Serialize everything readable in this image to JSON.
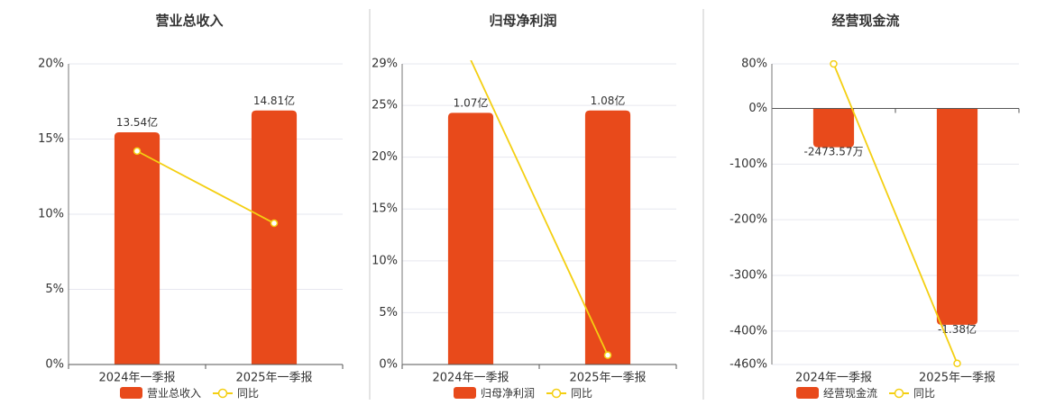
{
  "chart_data": [
    {
      "type": "bar",
      "title": "营业总收入",
      "categories": [
        "2024年一季报",
        "2025年一季报"
      ],
      "series": [
        {
          "name": "营业总收入",
          "type": "bar",
          "values": [
            13.54,
            14.81
          ],
          "labels": [
            "13.54亿",
            "14.81亿"
          ],
          "color": "#E84A1B"
        },
        {
          "name": "同比",
          "type": "line",
          "values": [
            14.2,
            9.4
          ],
          "color": "#F4CF12"
        }
      ],
      "ylim": [
        0,
        20
      ],
      "yticks": [
        0,
        5,
        10,
        15,
        20
      ],
      "ytick_labels": [
        "0%",
        "5%",
        "10%",
        "15%",
        "20%"
      ],
      "grid": true,
      "legend": "bottom"
    },
    {
      "type": "bar",
      "title": "归母净利润",
      "categories": [
        "2024年一季报",
        "2025年一季报"
      ],
      "series": [
        {
          "name": "归母净利润",
          "type": "bar",
          "values": [
            1.07,
            1.08
          ],
          "labels": [
            "1.07亿",
            "1.08亿"
          ],
          "color": "#E84A1B"
        },
        {
          "name": "同比",
          "type": "line",
          "values": [
            29.4,
            0.9
          ],
          "color": "#F4CF12"
        }
      ],
      "ylim": [
        0,
        29
      ],
      "yticks": [
        0,
        5,
        10,
        15,
        20,
        25,
        29
      ],
      "ytick_labels": [
        "0%",
        "5%",
        "10%",
        "15%",
        "20%",
        "25%",
        "29%"
      ],
      "grid": true,
      "legend": "bottom"
    },
    {
      "type": "bar",
      "title": "经营现金流",
      "categories": [
        "2024年一季报",
        "2025年一季报"
      ],
      "series": [
        {
          "name": "经营现金流",
          "type": "bar",
          "values": [
            -0.247357,
            -1.38
          ],
          "labels": [
            "-2473.57万",
            "-1.38亿"
          ],
          "color": "#E84A1B"
        },
        {
          "name": "同比",
          "type": "line",
          "values": [
            80,
            -458
          ],
          "color": "#F4CF12"
        }
      ],
      "ylim": [
        -460,
        80
      ],
      "yticks": [
        -460,
        -400,
        -300,
        -200,
        -100,
        0,
        80
      ],
      "ytick_labels": [
        "-460%",
        "-400%",
        "-300%",
        "-200%",
        "-100%",
        "0%",
        "80%"
      ],
      "grid": true,
      "legend": "bottom"
    }
  ]
}
